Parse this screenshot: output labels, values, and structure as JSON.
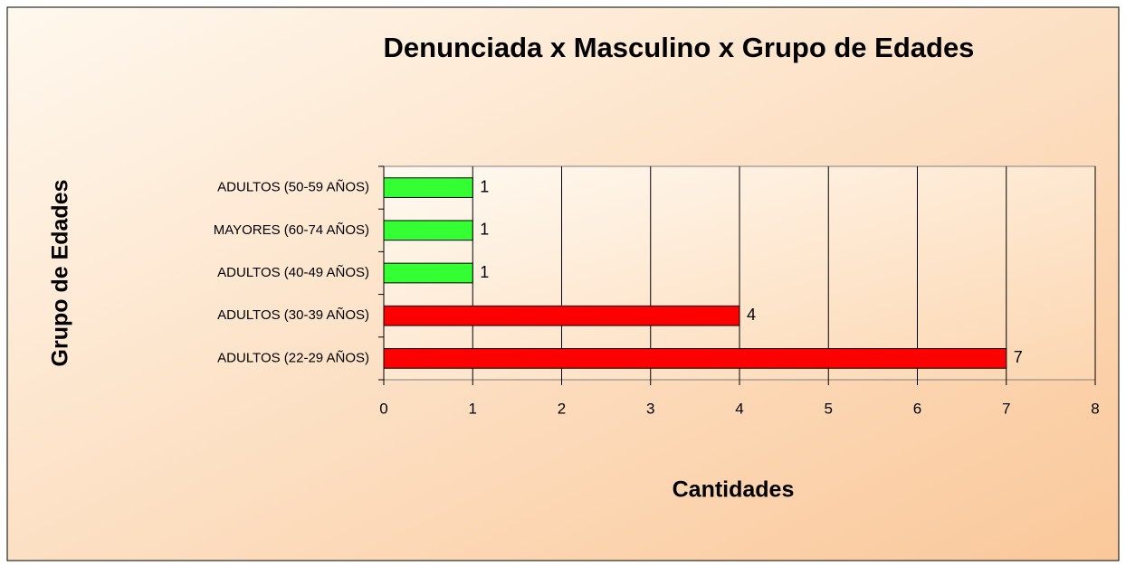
{
  "chart_data": {
    "type": "bar",
    "orientation": "horizontal",
    "title": "Denunciada x Masculino x Grupo de Edades",
    "x_label": "Cantidades",
    "y_label": "Grupo de Edades",
    "categories": [
      "ADULTOS (50-59 AÑOS)",
      "MAYORES (60-74 AÑOS)",
      "ADULTOS (40-49 AÑOS)",
      "ADULTOS (30-39 AÑOS)",
      "ADULTOS (22-29 AÑOS)"
    ],
    "values": [
      1,
      1,
      1,
      4,
      7
    ],
    "colors": [
      "#33ff33",
      "#33ff33",
      "#33ff33",
      "#ff0000",
      "#ff0000"
    ],
    "xlim": [
      0,
      8
    ],
    "xticks": [
      0,
      1,
      2,
      3,
      4,
      5,
      6,
      7,
      8
    ],
    "grid": true
  }
}
